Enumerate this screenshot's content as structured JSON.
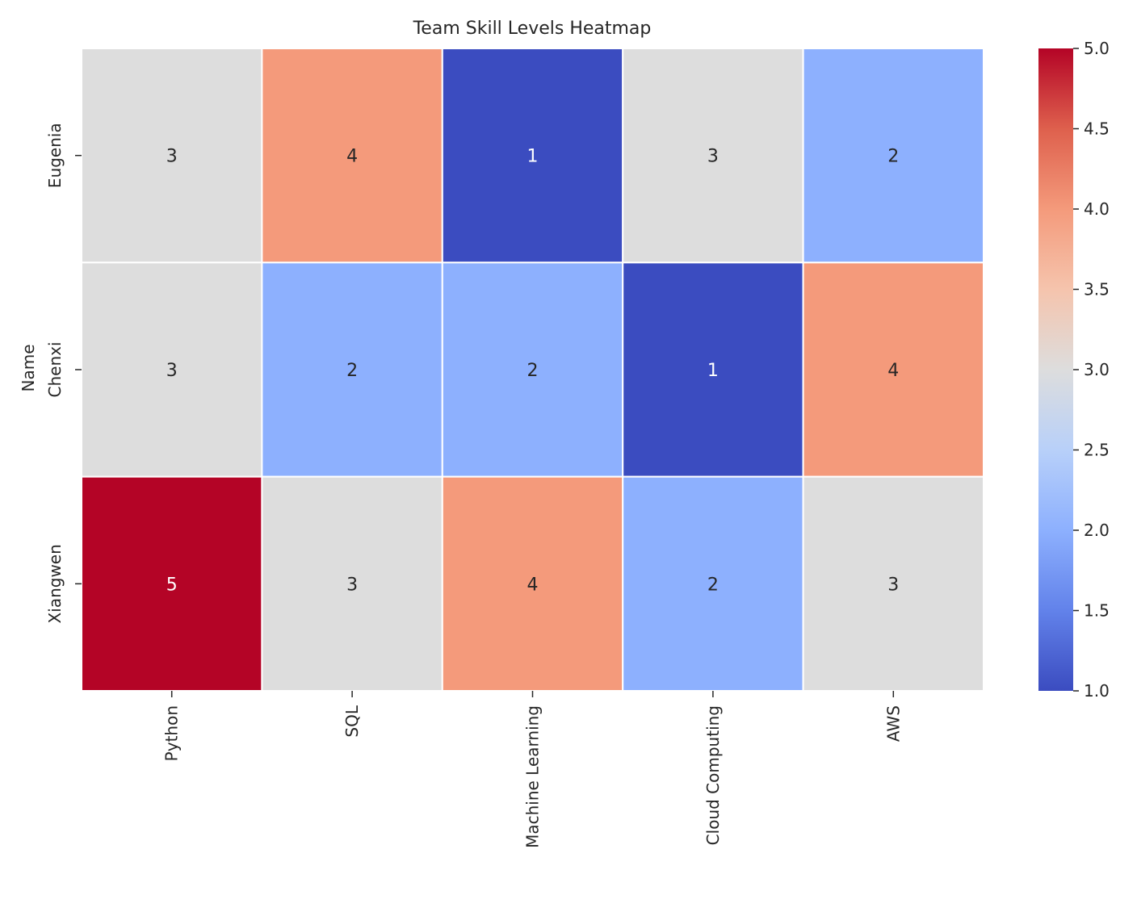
{
  "chart_data": {
    "type": "heatmap",
    "title": "Team Skill Levels Heatmap",
    "xlabel": "",
    "ylabel": "Name",
    "columns": [
      "Python",
      "SQL",
      "Machine Learning",
      "Cloud Computing",
      "AWS"
    ],
    "rows": [
      "Eugenia",
      "Chenxi",
      "Xiangwen"
    ],
    "values": [
      [
        3,
        4,
        1,
        3,
        2
      ],
      [
        3,
        2,
        2,
        1,
        4
      ],
      [
        5,
        3,
        4,
        2,
        3
      ]
    ],
    "colormap": "coolwarm",
    "vmin": 1,
    "vmax": 5,
    "annotations": true,
    "colorbar_ticks": [
      "1.0",
      "1.5",
      "2.0",
      "2.5",
      "3.0",
      "3.5",
      "4.0",
      "4.5",
      "5.0"
    ],
    "colors": {
      "low": "#3b4cc0",
      "mid": "#dddddd",
      "high": "#b40426",
      "cell_border": "#ffffff"
    }
  }
}
